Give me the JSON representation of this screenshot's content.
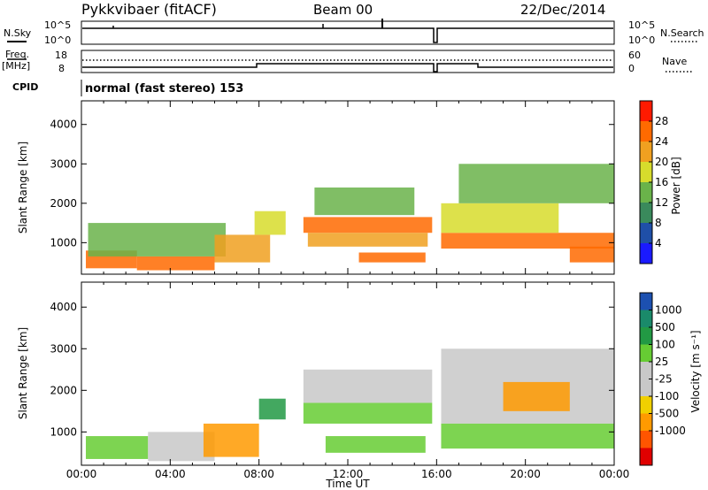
{
  "header": {
    "station": "Pykkvibaer (fitACF)",
    "beam": "Beam 00",
    "date": "22/Dec/2014"
  },
  "strips": {
    "nsky": {
      "left_label": "N.Sky",
      "right_label": "N.Search",
      "left_ticks": [
        "10^5",
        "10^0"
      ],
      "right_ticks": [
        "10^5",
        "10^0"
      ]
    },
    "freq": {
      "left_label": "Freq.",
      "left_unit": "[MHz]",
      "right_label": "Nave",
      "left_ticks": [
        "18",
        "8"
      ],
      "right_ticks": [
        "60",
        "0"
      ]
    },
    "cpid": {
      "label": "CPID",
      "value": "normal (fast stereo) 153"
    }
  },
  "x_ticks": [
    "00:00",
    "04:00",
    "08:00",
    "12:00",
    "16:00",
    "20:00",
    "00:00"
  ],
  "x_label": "Time UT",
  "colors": {
    "power": [
      "#1a1aff",
      "#1f4fa8",
      "#3a8a5c",
      "#6ab34a",
      "#d7dc2c",
      "#f0a020",
      "#ff6a00",
      "#ff1a00"
    ],
    "velocity": [
      "#e00000",
      "#ff5500",
      "#ff9a00",
      "#f0d000",
      "#c8c8c8",
      "#c8c8c8",
      "#66cc33",
      "#229944",
      "#1a8a6a",
      "#1c50b0"
    ]
  },
  "chart_data": [
    {
      "type": "heatmap",
      "name": "Power",
      "xlabel": "Time UT",
      "ylabel": "Slant Range [km]",
      "y_ticks": [
        1000,
        2000,
        3000,
        4000
      ],
      "ylim": [
        200,
        4600
      ],
      "xlim_hours": [
        0,
        24
      ],
      "colorbar": {
        "label": "Power [dB]",
        "ticks": [
          4,
          8,
          12,
          16,
          20,
          24,
          28
        ],
        "range": [
          0,
          32
        ]
      },
      "regions": [
        {
          "t0": 0.2,
          "t1": 2.5,
          "r0": 350,
          "r1": 800,
          "value": 26
        },
        {
          "t0": 2.5,
          "t1": 6.0,
          "r0": 300,
          "r1": 650,
          "value": 27
        },
        {
          "t0": 0.3,
          "t1": 6.5,
          "r0": 650,
          "r1": 1500,
          "value": 12
        },
        {
          "t0": 6.0,
          "t1": 8.5,
          "r0": 500,
          "r1": 1200,
          "value": 20
        },
        {
          "t0": 7.8,
          "t1": 9.2,
          "r0": 1200,
          "r1": 1800,
          "value": 18
        },
        {
          "t0": 10.0,
          "t1": 15.8,
          "r0": 1250,
          "r1": 1650,
          "value": 27
        },
        {
          "t0": 10.2,
          "t1": 15.6,
          "r0": 900,
          "r1": 1250,
          "value": 21
        },
        {
          "t0": 10.5,
          "t1": 15.0,
          "r0": 1700,
          "r1": 2400,
          "value": 12
        },
        {
          "t0": 12.5,
          "t1": 15.5,
          "r0": 500,
          "r1": 750,
          "value": 25
        },
        {
          "t0": 16.2,
          "t1": 24.0,
          "r0": 850,
          "r1": 1250,
          "value": 27
        },
        {
          "t0": 16.2,
          "t1": 21.5,
          "r0": 1250,
          "r1": 2000,
          "value": 19
        },
        {
          "t0": 17.0,
          "t1": 24.0,
          "r0": 2000,
          "r1": 3000,
          "value": 14
        },
        {
          "t0": 22.0,
          "t1": 24.0,
          "r0": 500,
          "r1": 900,
          "value": 27
        }
      ]
    },
    {
      "type": "heatmap",
      "name": "Velocity",
      "xlabel": "Time UT",
      "ylabel": "Slant Range [km]",
      "y_ticks": [
        1000,
        2000,
        3000,
        4000
      ],
      "ylim": [
        200,
        4600
      ],
      "xlim_hours": [
        0,
        24
      ],
      "colorbar": {
        "label": "Velocity [m s⁻¹]",
        "ticks": [
          1000,
          500,
          100,
          25,
          -25,
          -100,
          -500,
          -1000
        ]
      },
      "regions": [
        {
          "t0": 0.2,
          "t1": 3.0,
          "r0": 350,
          "r1": 900,
          "value": 150
        },
        {
          "t0": 3.0,
          "t1": 6.0,
          "r0": 300,
          "r1": 1000,
          "value": 0
        },
        {
          "t0": 5.5,
          "t1": 8.0,
          "r0": 400,
          "r1": 1200,
          "value": -300
        },
        {
          "t0": 8.0,
          "t1": 9.2,
          "r0": 1300,
          "r1": 1800,
          "value": 600
        },
        {
          "t0": 10.0,
          "t1": 15.8,
          "r0": 1200,
          "r1": 1700,
          "value": 300
        },
        {
          "t0": 10.0,
          "t1": 15.8,
          "r0": 1700,
          "r1": 2500,
          "value": 0
        },
        {
          "t0": 11.0,
          "t1": 15.5,
          "r0": 500,
          "r1": 900,
          "value": 200
        },
        {
          "t0": 16.2,
          "t1": 24.0,
          "r0": 1200,
          "r1": 3000,
          "value": 0
        },
        {
          "t0": 16.2,
          "t1": 24.0,
          "r0": 600,
          "r1": 1200,
          "value": 250
        },
        {
          "t0": 19.0,
          "t1": 22.0,
          "r0": 1500,
          "r1": 2200,
          "value": -150
        }
      ]
    }
  ]
}
